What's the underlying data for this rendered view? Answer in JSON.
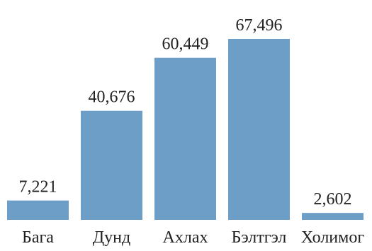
{
  "chart_data": {
    "type": "bar",
    "categories": [
      "Бага",
      "Дунд",
      "Ахлах",
      "Бэлтгэл",
      "Холимог"
    ],
    "values": [
      7221,
      40676,
      60449,
      67496,
      2602
    ],
    "value_labels": [
      "7,221",
      "40,676",
      "60,449",
      "67,496",
      "2,602"
    ],
    "title": "",
    "xlabel": "",
    "ylabel": "",
    "ylim": [
      0,
      67496
    ],
    "grid": false,
    "legend": "none",
    "bar_color": "#6d9ec7"
  }
}
